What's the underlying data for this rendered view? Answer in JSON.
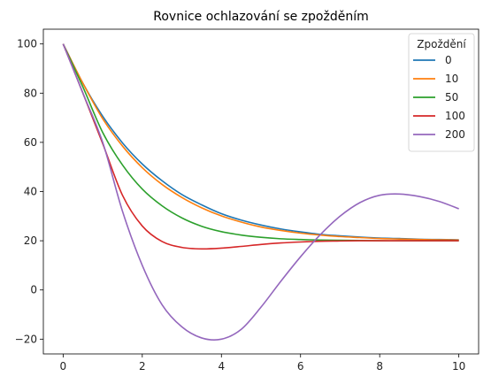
{
  "chart_data": {
    "type": "line",
    "title": "Rovnice ochlazování se zpožděním",
    "xlabel": "",
    "ylabel": "",
    "xlim": [
      -0.5,
      10.5
    ],
    "ylim": [
      -26,
      106
    ],
    "xticks": [
      0,
      2,
      4,
      6,
      8,
      10
    ],
    "yticks": [
      -20,
      0,
      20,
      40,
      60,
      80,
      100
    ],
    "grid": false,
    "legend": {
      "title": "Zpoždění",
      "position": "top-right"
    },
    "x": [
      0,
      0.5,
      1,
      1.5,
      2,
      2.5,
      3,
      3.5,
      4,
      4.5,
      5,
      5.5,
      6,
      6.5,
      7,
      7.5,
      8,
      8.5,
      9,
      9.5,
      10
    ],
    "series": [
      {
        "name": "0",
        "color": "#1f77b4",
        "values": [
          100,
          84.0,
          70.6,
          59.8,
          51.2,
          44.4,
          38.8,
          34.6,
          31.0,
          28.4,
          26.4,
          24.8,
          23.6,
          22.6,
          22.0,
          21.5,
          21.1,
          20.9,
          20.6,
          20.5,
          20.4
        ]
      },
      {
        "name": "10",
        "color": "#ff7f0e",
        "values": [
          100,
          84.0,
          69.6,
          58.5,
          49.7,
          42.9,
          37.6,
          33.4,
          30.1,
          27.6,
          25.6,
          24.2,
          23.1,
          22.3,
          21.7,
          21.3,
          20.9,
          20.7,
          20.5,
          20.4,
          20.3
        ]
      },
      {
        "name": "50",
        "color": "#2ca02c",
        "values": [
          100,
          82.5,
          64.0,
          50.8,
          41.0,
          34.2,
          29.3,
          25.9,
          23.7,
          22.3,
          21.4,
          20.8,
          20.5,
          20.3,
          20.2,
          20.1,
          20.0,
          20.0,
          20.0,
          20.0,
          20.0
        ]
      },
      {
        "name": "100",
        "color": "#d62728",
        "values": [
          100,
          80.0,
          59.5,
          38.5,
          26.0,
          19.7,
          17.3,
          16.7,
          17.0,
          17.7,
          18.5,
          19.1,
          19.5,
          19.8,
          19.9,
          20.0,
          20.0,
          20.0,
          20.0,
          20.0,
          20.0
        ]
      },
      {
        "name": "200",
        "color": "#9467bd",
        "values": [
          100,
          80.0,
          60.0,
          32.0,
          10.0,
          -6.0,
          -15.0,
          -19.5,
          -20.0,
          -16.0,
          -7.0,
          3.5,
          13.5,
          22.5,
          30.0,
          35.5,
          38.5,
          39.0,
          38.0,
          36.0,
          33.0
        ]
      }
    ]
  }
}
